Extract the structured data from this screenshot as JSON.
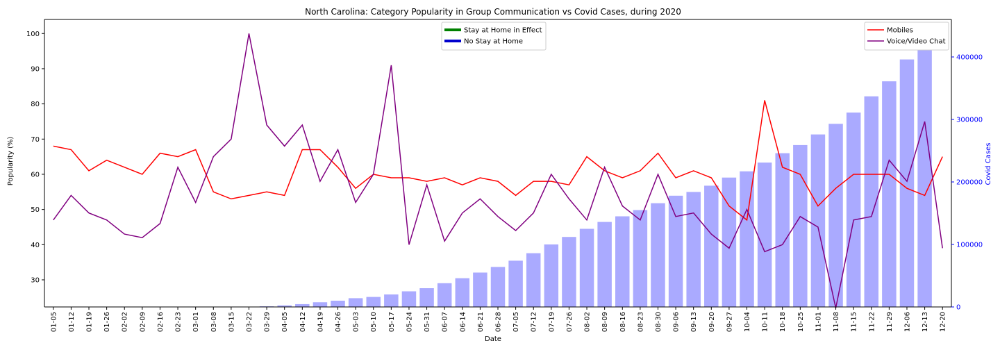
{
  "chart_data": {
    "type": "bar+line",
    "title": "North Carolina: Category Popularity in Group Communication vs Covid Cases, during 2020",
    "xlabel": "Date",
    "ylabel": "Popularity (%)",
    "y2label": "Covid Cases",
    "ylim": [
      22.3,
      104
    ],
    "y2lim": [
      0,
      460000
    ],
    "yticks": [
      30,
      40,
      50,
      60,
      70,
      80,
      90,
      100
    ],
    "y2ticks": [
      0,
      100000,
      200000,
      300000,
      400000
    ],
    "grid": false,
    "categories": [
      "01-05",
      "01-12",
      "01-19",
      "01-26",
      "02-02",
      "02-09",
      "02-16",
      "02-23",
      "03-01",
      "03-08",
      "03-15",
      "03-22",
      "03-29",
      "04-05",
      "04-12",
      "04-19",
      "04-26",
      "05-03",
      "05-10",
      "05-17",
      "05-24",
      "05-31",
      "06-07",
      "06-14",
      "06-21",
      "06-28",
      "07-05",
      "07-12",
      "07-19",
      "07-26",
      "08-02",
      "08-09",
      "08-16",
      "08-23",
      "08-30",
      "09-06",
      "09-13",
      "09-20",
      "09-27",
      "10-04",
      "10-11",
      "10-18",
      "10-25",
      "11-01",
      "11-08",
      "11-15",
      "11-22",
      "11-29",
      "12-06",
      "12-13",
      "12-20"
    ],
    "series": [
      {
        "name": "Mobiles",
        "kind": "line",
        "axis": "left",
        "color": "#ff0000",
        "values": [
          68,
          67,
          61,
          64,
          62,
          60,
          66,
          65,
          67,
          55,
          53,
          54,
          55,
          54,
          67,
          67,
          62,
          56,
          60,
          59,
          59,
          58,
          59,
          57,
          59,
          58,
          54,
          58,
          58,
          57,
          65,
          61,
          59,
          61,
          66,
          59,
          61,
          59,
          51,
          47,
          81,
          62,
          60,
          51,
          56,
          60,
          60,
          60,
          56,
          54,
          65
        ]
      },
      {
        "name": "Voice/Video Chat",
        "kind": "line",
        "axis": "left",
        "color": "#800080",
        "values": [
          47,
          54,
          49,
          47,
          43,
          42,
          46,
          62,
          52,
          65,
          70,
          100,
          74,
          68,
          74,
          58,
          67,
          52,
          60,
          91,
          40,
          57,
          41,
          49,
          53,
          48,
          44,
          49,
          60,
          53,
          47,
          62,
          51,
          47,
          60,
          48,
          49,
          43,
          39,
          50,
          38,
          40,
          48,
          45,
          22,
          47,
          48,
          64,
          58,
          75,
          39
        ]
      },
      {
        "name": "Covid Cases",
        "kind": "bar",
        "axis": "right",
        "color": "#aaaaff",
        "values": [
          0,
          0,
          0,
          0,
          0,
          0,
          0,
          0,
          0,
          0,
          0,
          0,
          1000,
          2500,
          4500,
          7500,
          10000,
          14000,
          16000,
          20000,
          25000,
          30000,
          38000,
          46000,
          55000,
          64000,
          74000,
          86000,
          100000,
          112000,
          125000,
          136000,
          145000,
          155000,
          166000,
          178000,
          184000,
          194000,
          207000,
          217000,
          231000,
          246000,
          259000,
          276000,
          293000,
          311000,
          337000,
          361000,
          396000,
          434000,
          0
        ]
      }
    ],
    "legends": [
      {
        "position": "top-center",
        "entries": [
          {
            "label": "Stay at Home in Effect",
            "color": "#008000"
          },
          {
            "label": "No Stay at Home",
            "color": "#0000cd"
          }
        ]
      },
      {
        "position": "top-right",
        "entries": [
          {
            "label": "Mobiles",
            "color": "#ff0000"
          },
          {
            "label": "Voice/Video Chat",
            "color": "#800080"
          }
        ]
      }
    ]
  }
}
